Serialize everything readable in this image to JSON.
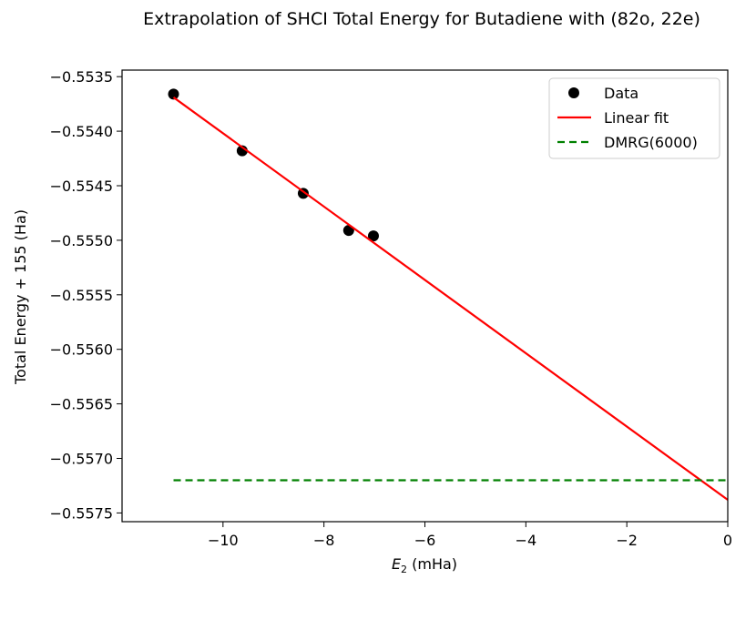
{
  "chart_data": {
    "type": "scatter",
    "title": "Extrapolation of SHCI Total Energy for Butadiene with (82o, 22e)",
    "xlabel_main": "E",
    "xlabel_sub": "2",
    "xlabel_units": " (mHa)",
    "ylabel": "Total Energy + 155 (Ha)",
    "xlim": [
      -12.0,
      0.0
    ],
    "ylim": [
      -0.55758,
      -0.55344
    ],
    "xticks": [
      -10,
      -8,
      -6,
      -4,
      -2,
      0
    ],
    "xtick_labels": [
      "−10",
      "−8",
      "−6",
      "−4",
      "−2",
      "0"
    ],
    "yticks": [
      -0.5535,
      -0.554,
      -0.5545,
      -0.555,
      -0.5555,
      -0.556,
      -0.5565,
      -0.557,
      -0.5575
    ],
    "ytick_labels": [
      "−0.5535",
      "−0.5540",
      "−0.5545",
      "−0.5550",
      "−0.5555",
      "−0.5560",
      "−0.5565",
      "−0.5570",
      "−0.5575"
    ],
    "series": [
      {
        "name": "Data",
        "kind": "scatter",
        "color": "#000000",
        "x": [
          -10.98,
          -9.62,
          -8.41,
          -7.51,
          -7.02
        ],
        "y": [
          -0.55366,
          -0.55418,
          -0.55457,
          -0.55491,
          -0.55496
        ]
      },
      {
        "name": "Linear fit",
        "kind": "line",
        "color": "#ff0000",
        "x": [
          -10.98,
          0.0
        ],
        "y": [
          -0.55369,
          -0.55738
        ]
      },
      {
        "name": "DMRG(6000)",
        "kind": "dashed-line",
        "color": "#008000",
        "x": [
          -10.98,
          0.0
        ],
        "y": [
          -0.5572,
          -0.5572
        ]
      }
    ],
    "legend": {
      "position": "top-right",
      "entries": [
        "Data",
        "Linear fit",
        "DMRG(6000)"
      ]
    }
  }
}
